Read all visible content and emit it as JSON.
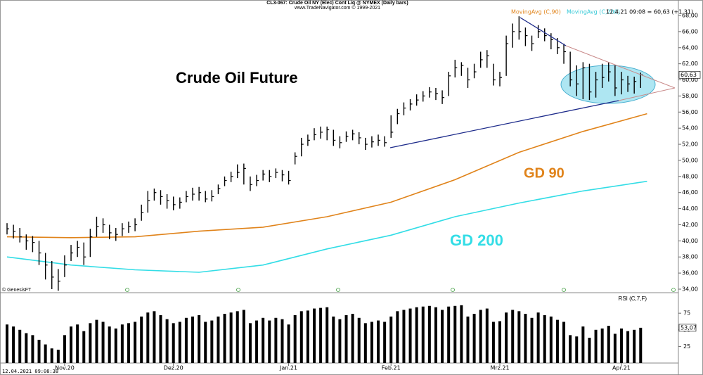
{
  "chart_data": [
    {
      "type": "ohlc",
      "header": "CL3-067: Crude Oil NY (Elec) Cont Liq @ NYMEX (Daily bars)",
      "subheader": "www.TradeNavigator.com © 1999-2021",
      "title": "Crude Oil Future",
      "legend_text": "12.4.21 09:08 = 60,63 (+1,31)",
      "source": "© GenesisFT",
      "last_label": "60,63",
      "color": "#000000",
      "high": [
        42.2,
        42.0,
        41.6,
        40.8,
        40.6,
        40.0,
        38.5,
        37.5,
        36.5,
        38.2,
        39.5,
        40.0,
        39.8,
        41.5,
        43.0,
        42.8,
        42.0,
        41.6,
        42.2,
        42.4,
        42.8,
        44.5,
        46.2,
        46.5,
        46.3,
        45.8,
        45.5,
        45.4,
        46.2,
        46.6,
        46.7,
        46.2,
        46.3,
        47.0,
        48.0,
        48.6,
        49.5,
        49.6,
        48.0,
        48.2,
        48.8,
        48.8,
        49.0,
        48.8,
        48.7,
        51.0,
        52.8,
        53.2,
        54.0,
        54.2,
        54.2,
        53.8,
        53.0,
        53.6,
        53.8,
        53.5,
        52.8,
        53.0,
        53.2,
        53.0,
        55.6,
        56.4,
        57.2,
        57.6,
        58.2,
        58.6,
        59.1,
        59.0,
        58.7,
        61.0,
        62.5,
        62.2,
        61.5,
        62.0,
        63.5,
        63.7,
        62.0,
        61.0,
        65.5,
        67.0,
        67.9,
        66.5,
        65.5,
        66.8,
        66.4,
        65.8,
        65.2,
        64.5,
        63.5,
        61.8,
        62.2,
        62.0,
        61.0,
        62.0,
        62.2,
        61.8,
        61.0,
        60.5,
        60.4,
        60.9
      ],
      "low": [
        40.8,
        40.3,
        39.8,
        38.9,
        38.6,
        37.0,
        35.2,
        34.0,
        33.8,
        35.5,
        37.5,
        38.0,
        37.0,
        38.0,
        40.5,
        41.0,
        40.2,
        40.0,
        40.6,
        41.0,
        41.2,
        42.5,
        43.5,
        45.0,
        44.5,
        44.0,
        43.8,
        44.0,
        44.8,
        45.0,
        45.0,
        44.8,
        44.9,
        45.8,
        46.8,
        47.3,
        47.8,
        47.0,
        46.2,
        46.8,
        47.5,
        47.3,
        47.8,
        47.4,
        47.0,
        49.5,
        50.5,
        51.8,
        52.5,
        52.7,
        52.5,
        51.8,
        51.5,
        52.3,
        52.5,
        52.0,
        51.3,
        51.6,
        51.8,
        51.7,
        52.8,
        54.5,
        55.6,
        56.2,
        56.8,
        57.3,
        57.8,
        57.5,
        57.0,
        58.0,
        60.3,
        60.5,
        59.0,
        60.2,
        61.5,
        61.5,
        59.3,
        59.2,
        60.5,
        64.0,
        65.0,
        64.2,
        63.6,
        65.2,
        64.8,
        63.8,
        63.2,
        62.0,
        59.2,
        58.0,
        57.6,
        57.5,
        57.8,
        59.0,
        59.8,
        58.0,
        58.2,
        58.5,
        58.3,
        59.0
      ],
      "close": [
        41.5,
        41.2,
        40.5,
        40.0,
        39.8,
        38.5,
        37.0,
        35.5,
        35.0,
        37.0,
        38.5,
        39.2,
        38.0,
        40.5,
        41.8,
        42.0,
        41.0,
        40.8,
        41.5,
        41.8,
        42.0,
        43.5,
        45.0,
        46.0,
        45.5,
        45.0,
        44.5,
        44.8,
        45.5,
        45.8,
        46.0,
        45.2,
        45.5,
        46.5,
        47.5,
        48.0,
        48.5,
        49.0,
        47.0,
        47.5,
        48.3,
        48.0,
        48.5,
        48.2,
        47.5,
        50.5,
        52.0,
        52.5,
        53.2,
        53.5,
        53.8,
        52.5,
        52.2,
        53.0,
        53.3,
        52.8,
        52.0,
        52.3,
        52.5,
        52.2,
        53.5,
        55.8,
        56.5,
        57.0,
        57.5,
        58.0,
        58.5,
        58.3,
        57.8,
        60.5,
        61.5,
        61.8,
        60.0,
        61.0,
        62.5,
        63.0,
        60.0,
        60.3,
        64.5,
        66.0,
        66.0,
        65.5,
        64.5,
        66.0,
        65.5,
        65.0,
        64.0,
        63.5,
        60.0,
        59.5,
        61.5,
        58.5,
        60.0,
        60.3,
        61.0,
        59.0,
        60.0,
        59.5,
        59.8,
        60.63
      ],
      "series": [
        {
          "name": "MovingAvg (C,90)",
          "label": "GD 90",
          "color": "#e0831a",
          "x": [
            0,
            10,
            20,
            30,
            40,
            50,
            60,
            70,
            80,
            90,
            100
          ],
          "values": [
            40.5,
            40.4,
            40.5,
            41.2,
            41.7,
            43.0,
            44.8,
            47.6,
            51.0,
            53.6,
            55.8
          ]
        },
        {
          "name": "MovingAvg (C,200)",
          "label": "GD 200",
          "color": "#33dde6",
          "x": [
            0,
            10,
            20,
            30,
            40,
            50,
            60,
            70,
            80,
            90,
            100
          ],
          "values": [
            38.0,
            37.0,
            36.4,
            36.1,
            37.0,
            39.0,
            40.7,
            43.0,
            44.7,
            46.2,
            47.4
          ]
        }
      ],
      "xlim": [
        -1.1,
        104.9
      ],
      "ylim": [
        33.65,
        69.05
      ],
      "yticks": [
        {
          "value": 34,
          "label": "34,00"
        },
        {
          "value": 36,
          "label": "36,00"
        },
        {
          "value": 38,
          "label": "38,00"
        },
        {
          "value": 40,
          "label": "40,00"
        },
        {
          "value": 42,
          "label": "42,00"
        },
        {
          "value": 44,
          "label": "44,00"
        },
        {
          "value": 46,
          "label": "46,00"
        },
        {
          "value": 48,
          "label": "48,00"
        },
        {
          "value": 50,
          "label": "50,00"
        },
        {
          "value": 52,
          "label": "52,00"
        },
        {
          "value": 54,
          "label": "54,00"
        },
        {
          "value": 56,
          "label": "56,00"
        },
        {
          "value": 58,
          "label": "58,00"
        },
        {
          "value": 60,
          "label": "60,00"
        },
        {
          "value": 62,
          "label": "62,00"
        },
        {
          "value": 64,
          "label": "64,00"
        },
        {
          "value": 66,
          "label": "66,00"
        },
        {
          "value": 68,
          "label": "68,00"
        }
      ],
      "xticks": [
        {
          "value": 9,
          "label": "Nov.20"
        },
        {
          "value": 26,
          "label": "Dez.20"
        },
        {
          "value": 44,
          "label": "Jan.21"
        },
        {
          "value": 60,
          "label": "Feb.21"
        },
        {
          "value": 77,
          "label": "Mrz.21"
        },
        {
          "value": 96,
          "label": "Apr.21"
        }
      ]
    },
    {
      "type": "bar",
      "label": "RSI (C,7,F)",
      "timestamp": "12.04.2021 09:08:38",
      "last_label": "53,07",
      "color": "#000000",
      "values": [
        58,
        55,
        50,
        45,
        42,
        35,
        28,
        22,
        20,
        42,
        55,
        58,
        48,
        60,
        65,
        62,
        55,
        52,
        58,
        60,
        62,
        70,
        76,
        78,
        72,
        66,
        60,
        62,
        68,
        70,
        72,
        62,
        64,
        70,
        74,
        76,
        78,
        80,
        60,
        64,
        68,
        64,
        68,
        66,
        58,
        72,
        78,
        79,
        82,
        83,
        84,
        70,
        66,
        72,
        74,
        68,
        60,
        62,
        64,
        62,
        70,
        78,
        80,
        82,
        84,
        85,
        86,
        84,
        80,
        85,
        86,
        87,
        70,
        74,
        80,
        82,
        62,
        63,
        76,
        80,
        78,
        74,
        68,
        76,
        72,
        70,
        65,
        62,
        42,
        40,
        55,
        38,
        50,
        52,
        56,
        44,
        52,
        48,
        50,
        53.07
      ],
      "ylim": [
        0,
        90
      ],
      "yticks": [
        25,
        50,
        75
      ]
    }
  ]
}
